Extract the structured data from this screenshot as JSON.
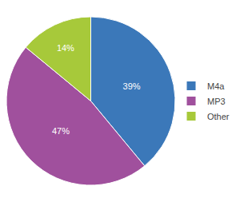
{
  "chart_data": {
    "type": "pie",
    "categories": [
      "M4a",
      "MP3",
      "Other"
    ],
    "values": [
      39,
      47,
      14
    ],
    "value_labels": [
      "39%",
      "47%",
      "14%"
    ],
    "colors": [
      "#3b78b9",
      "#a0509d",
      "#a7c93a"
    ],
    "data_labels": true,
    "legend": "right"
  }
}
